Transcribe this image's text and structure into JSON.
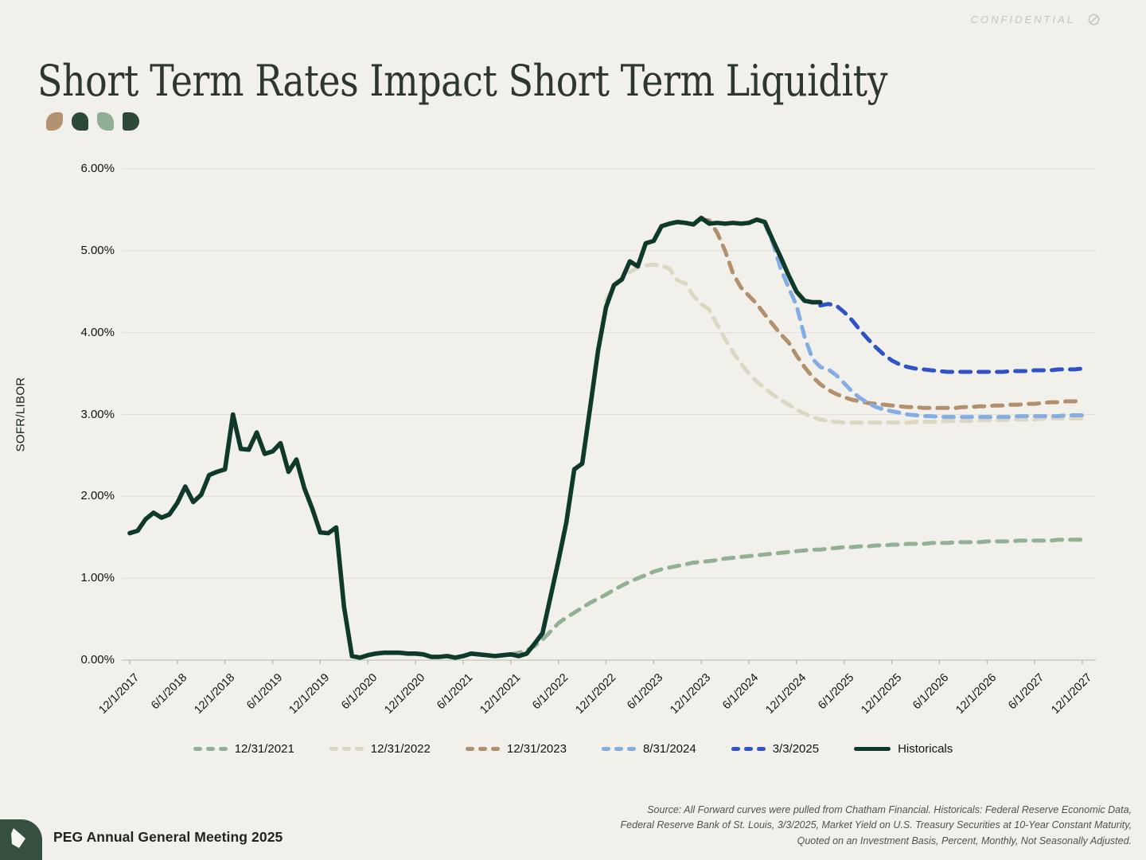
{
  "page": {
    "confidential": "CONFIDENTIAL",
    "title": "Short Term Rates Impact Short Term Liquidity"
  },
  "deco": {
    "petals": [
      {
        "color": "#b39271",
        "radius": "13px 4px 13px 4px"
      },
      {
        "color": "#2d4a39",
        "radius": "13px 13px 4px 13px"
      },
      {
        "color": "#90b096",
        "radius": "4px 13px 4px 13px"
      },
      {
        "color": "#2d4a39",
        "radius": "4px 13px 13px 4px"
      }
    ]
  },
  "chart_data": {
    "type": "line",
    "ylabel": "SOFR/LIBOR",
    "ylim": [
      0,
      6
    ],
    "yticks": [
      "6.00%",
      "5.00%",
      "4.00%",
      "3.00%",
      "2.00%",
      "1.00%",
      "0.00%"
    ],
    "grid": "horizontal",
    "legend_position": "bottom",
    "x_unit": "month",
    "x_months_total": 120,
    "x_tick_every_months": 6,
    "x_tick_labels": [
      "12/1/2017",
      "6/1/2018",
      "12/1/2018",
      "6/1/2019",
      "12/1/2019",
      "6/1/2020",
      "12/1/2020",
      "6/1/2021",
      "12/1/2021",
      "6/1/2022",
      "12/1/2022",
      "6/1/2023",
      "12/1/2023",
      "6/1/2024",
      "12/1/2024",
      "6/1/2025",
      "12/1/2025",
      "6/1/2026",
      "12/1/2026",
      "6/1/2027",
      "12/1/2027"
    ],
    "series": [
      {
        "name": "12/31/2021",
        "color": "#92b194",
        "dashed": true,
        "start_month_index": 48,
        "values": [
          0.07,
          0.09,
          0.12,
          0.17,
          0.25,
          0.35,
          0.45,
          0.52,
          0.58,
          0.64,
          0.7,
          0.75,
          0.8,
          0.86,
          0.91,
          0.96,
          1.0,
          1.04,
          1.08,
          1.11,
          1.13,
          1.15,
          1.17,
          1.19,
          1.2,
          1.21,
          1.22,
          1.24,
          1.25,
          1.26,
          1.27,
          1.28,
          1.29,
          1.3,
          1.31,
          1.32,
          1.33,
          1.34,
          1.35,
          1.35,
          1.36,
          1.37,
          1.38,
          1.38,
          1.39,
          1.39,
          1.4,
          1.4,
          1.41,
          1.41,
          1.42,
          1.42,
          1.42,
          1.43,
          1.43,
          1.43,
          1.44,
          1.44,
          1.44,
          1.44,
          1.45,
          1.45,
          1.45,
          1.45,
          1.46,
          1.46,
          1.46,
          1.46,
          1.46,
          1.47,
          1.47,
          1.47,
          1.47
        ]
      },
      {
        "name": "12/31/2022",
        "color": "#ddd6c0",
        "dashed": true,
        "start_month_index": 60,
        "values": [
          4.4,
          4.55,
          4.66,
          4.74,
          4.79,
          4.82,
          4.83,
          4.82,
          4.78,
          4.64,
          4.6,
          4.45,
          4.35,
          4.28,
          4.1,
          3.92,
          3.76,
          3.62,
          3.5,
          3.4,
          3.32,
          3.24,
          3.18,
          3.12,
          3.06,
          3.01,
          2.97,
          2.94,
          2.92,
          2.91,
          2.9,
          2.9,
          2.9,
          2.9,
          2.9,
          2.9,
          2.9,
          2.9,
          2.9,
          2.91,
          2.91,
          2.91,
          2.91,
          2.92,
          2.92,
          2.92,
          2.92,
          2.93,
          2.93,
          2.93,
          2.93,
          2.94,
          2.94,
          2.94,
          2.94,
          2.95,
          2.95,
          2.95,
          2.95,
          2.95,
          2.95
        ]
      },
      {
        "name": "12/31/2023",
        "color": "#b28f6d",
        "dashed": true,
        "start_month_index": 72,
        "values": [
          5.38,
          5.37,
          5.22,
          5.0,
          4.72,
          4.55,
          4.45,
          4.35,
          4.22,
          4.1,
          3.98,
          3.88,
          3.72,
          3.58,
          3.46,
          3.37,
          3.3,
          3.25,
          3.21,
          3.18,
          3.16,
          3.14,
          3.13,
          3.12,
          3.11,
          3.1,
          3.09,
          3.09,
          3.08,
          3.08,
          3.08,
          3.08,
          3.08,
          3.09,
          3.09,
          3.1,
          3.1,
          3.11,
          3.11,
          3.12,
          3.12,
          3.13,
          3.13,
          3.14,
          3.15,
          3.15,
          3.16,
          3.16,
          3.17
        ]
      },
      {
        "name": "8/31/2024",
        "color": "#84aee3",
        "dashed": true,
        "start_month_index": 80,
        "values": [
          5.33,
          5.1,
          4.78,
          4.55,
          4.33,
          3.95,
          3.68,
          3.58,
          3.55,
          3.48,
          3.38,
          3.28,
          3.2,
          3.14,
          3.09,
          3.06,
          3.04,
          3.02,
          3.0,
          2.99,
          2.98,
          2.98,
          2.97,
          2.97,
          2.97,
          2.97,
          2.97,
          2.97,
          2.97,
          2.97,
          2.97,
          2.97,
          2.98,
          2.98,
          2.98,
          2.98,
          2.98,
          2.98,
          2.99,
          2.99,
          2.99
        ]
      },
      {
        "name": "3/3/2025",
        "color": "#2f52c6",
        "dashed": true,
        "start_month_index": 87,
        "values": [
          4.33,
          4.35,
          4.33,
          4.25,
          4.15,
          4.03,
          3.92,
          3.82,
          3.73,
          3.66,
          3.61,
          3.58,
          3.56,
          3.55,
          3.54,
          3.53,
          3.52,
          3.52,
          3.52,
          3.52,
          3.52,
          3.52,
          3.52,
          3.52,
          3.53,
          3.53,
          3.53,
          3.54,
          3.54,
          3.54,
          3.55,
          3.55,
          3.55,
          3.56
        ]
      },
      {
        "name": "Historicals",
        "color": "#0f3a2b",
        "dashed": false,
        "start_month_index": 0,
        "values": [
          1.55,
          1.58,
          1.72,
          1.8,
          1.74,
          1.78,
          1.92,
          2.12,
          1.93,
          2.02,
          2.26,
          2.3,
          2.33,
          3.0,
          2.58,
          2.57,
          2.78,
          2.52,
          2.55,
          2.65,
          2.3,
          2.45,
          2.1,
          1.85,
          1.56,
          1.55,
          1.62,
          0.65,
          0.05,
          0.03,
          0.06,
          0.08,
          0.09,
          0.09,
          0.09,
          0.08,
          0.08,
          0.07,
          0.04,
          0.04,
          0.05,
          0.03,
          0.05,
          0.08,
          0.07,
          0.06,
          0.05,
          0.06,
          0.07,
          0.05,
          0.08,
          0.2,
          0.33,
          0.77,
          1.21,
          1.68,
          2.33,
          2.4,
          3.08,
          3.78,
          4.31,
          4.58,
          4.65,
          4.87,
          4.81,
          5.09,
          5.12,
          5.3,
          5.33,
          5.35,
          5.34,
          5.32,
          5.4,
          5.33,
          5.34,
          5.33,
          5.34,
          5.33,
          5.34,
          5.38,
          5.35,
          5.13,
          4.92,
          4.7,
          4.5,
          4.39,
          4.37,
          4.37
        ]
      }
    ]
  },
  "footer": {
    "event": "PEG Annual General Meeting 2025",
    "source_lines": [
      "Source: All Forward curves were pulled from Chatham Financial. Historicals: Federal Reserve Economic Data,",
      "Federal Reserve Bank of St. Louis, 3/3/2025, Market Yield on U.S. Treasury Securities at 10-Year Constant Maturity,",
      "Quoted on an Investment Basis, Percent, Monthly, Not Seasonally Adjusted."
    ]
  }
}
